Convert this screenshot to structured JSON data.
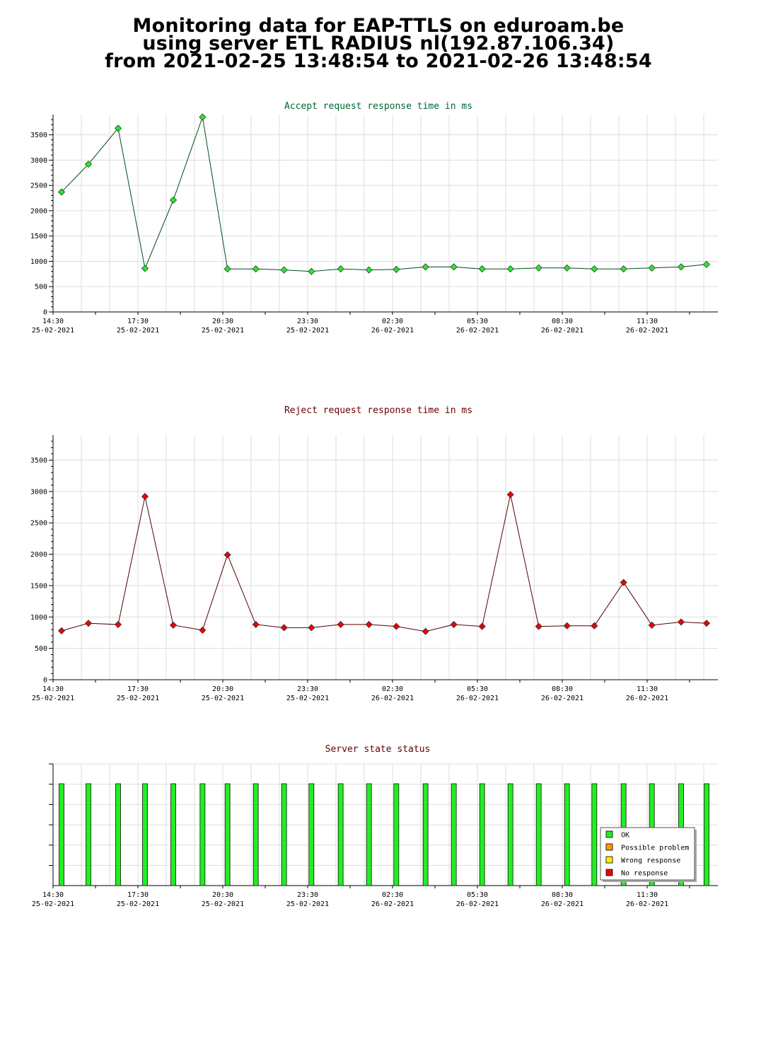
{
  "header": {
    "line1": "Monitoring data for EAP-TTLS on eduroam.be",
    "line2": "using server ETL RADIUS nl(192.87.106.34)",
    "line3": "from 2021-02-25 13:48:54 to 2021-02-26 13:48:54"
  },
  "x_ticks": [
    {
      "time": "14:30",
      "date": "25-02-2021",
      "hours": 0
    },
    {
      "time": "17:30",
      "date": "25-02-2021",
      "hours": 3
    },
    {
      "time": "20:30",
      "date": "25-02-2021",
      "hours": 6
    },
    {
      "time": "23:30",
      "date": "25-02-2021",
      "hours": 9
    },
    {
      "time": "02:30",
      "date": "26-02-2021",
      "hours": 12
    },
    {
      "time": "05:30",
      "date": "26-02-2021",
      "hours": 15
    },
    {
      "time": "08:30",
      "date": "26-02-2021",
      "hours": 18
    },
    {
      "time": "11:30",
      "date": "26-02-2021",
      "hours": 21
    }
  ],
  "chart_data": [
    {
      "type": "line",
      "title": "Accept request response time in ms",
      "title_color": "#006633",
      "line_color": "#004d1a",
      "marker_color": "#22ee22",
      "ylim": [
        0,
        3900
      ],
      "y_ticks": [
        0,
        500,
        1000,
        1500,
        2000,
        2500,
        3000,
        3500
      ],
      "x": [
        "2021-02-25 14:48",
        "2021-02-25 15:45",
        "2021-02-25 16:48",
        "2021-02-25 17:45",
        "2021-02-25 18:45",
        "2021-02-25 19:47",
        "2021-02-25 20:40",
        "2021-02-25 21:40",
        "2021-02-25 22:40",
        "2021-02-25 23:38",
        "2021-02-26 00:40",
        "2021-02-26 01:40",
        "2021-02-26 02:38",
        "2021-02-26 03:40",
        "2021-02-26 04:40",
        "2021-02-26 05:40",
        "2021-02-26 06:40",
        "2021-02-26 07:40",
        "2021-02-26 08:40",
        "2021-02-26 09:38",
        "2021-02-26 10:40",
        "2021-02-26 11:40",
        "2021-02-26 12:42",
        "2021-02-26 13:36"
      ],
      "values": [
        2370,
        2920,
        3630,
        860,
        2210,
        3850,
        850,
        850,
        830,
        800,
        850,
        830,
        840,
        890,
        890,
        850,
        850,
        870,
        870,
        850,
        850,
        870,
        890,
        940
      ],
      "grid": true
    },
    {
      "type": "line",
      "title": "Reject request response time in ms",
      "title_color": "#660000",
      "line_color": "#550000",
      "marker_color": "#ee0000",
      "ylim": [
        0,
        3900
      ],
      "y_ticks": [
        0,
        500,
        1000,
        1500,
        2000,
        2500,
        3000,
        3500
      ],
      "x": [
        "2021-02-25 14:48",
        "2021-02-25 15:45",
        "2021-02-25 16:48",
        "2021-02-25 17:45",
        "2021-02-25 18:45",
        "2021-02-25 19:47",
        "2021-02-25 20:40",
        "2021-02-25 21:40",
        "2021-02-25 22:40",
        "2021-02-25 23:38",
        "2021-02-26 00:40",
        "2021-02-26 01:40",
        "2021-02-26 02:38",
        "2021-02-26 03:40",
        "2021-02-26 04:40",
        "2021-02-26 05:40",
        "2021-02-26 06:40",
        "2021-02-26 07:40",
        "2021-02-26 08:40",
        "2021-02-26 09:38",
        "2021-02-26 10:40",
        "2021-02-26 11:40",
        "2021-02-26 12:42",
        "2021-02-26 13:36"
      ],
      "values": [
        780,
        900,
        880,
        2920,
        870,
        790,
        1990,
        880,
        830,
        830,
        880,
        880,
        850,
        770,
        880,
        850,
        2950,
        850,
        860,
        860,
        1550,
        870,
        920,
        900
      ],
      "grid": true
    },
    {
      "type": "bar",
      "title": "Server state status",
      "title_color": "#660000",
      "x": [
        "2021-02-25 14:48",
        "2021-02-25 15:45",
        "2021-02-25 16:48",
        "2021-02-25 17:45",
        "2021-02-25 18:45",
        "2021-02-25 19:47",
        "2021-02-25 20:40",
        "2021-02-25 21:40",
        "2021-02-25 22:40",
        "2021-02-25 23:38",
        "2021-02-26 00:40",
        "2021-02-26 01:40",
        "2021-02-26 02:38",
        "2021-02-26 03:40",
        "2021-02-26 04:40",
        "2021-02-26 05:40",
        "2021-02-26 06:40",
        "2021-02-26 07:40",
        "2021-02-26 08:40",
        "2021-02-26 09:38",
        "2021-02-26 10:40",
        "2021-02-26 11:40",
        "2021-02-26 12:42",
        "2021-02-26 13:36"
      ],
      "states": [
        "OK",
        "OK",
        "OK",
        "OK",
        "OK",
        "OK",
        "OK",
        "OK",
        "OK",
        "OK",
        "OK",
        "OK",
        "OK",
        "OK",
        "OK",
        "OK",
        "OK",
        "OK",
        "OK",
        "OK",
        "OK",
        "OK",
        "OK",
        "OK"
      ],
      "legend": [
        {
          "label": "OK",
          "color": "#22ee22"
        },
        {
          "label": "Possible problem",
          "color": "#ff9900"
        },
        {
          "label": "Wrong response",
          "color": "#ffee00"
        },
        {
          "label": "No response",
          "color": "#ee0000"
        }
      ],
      "legend_position": "bottom-right",
      "grid": true
    }
  ]
}
